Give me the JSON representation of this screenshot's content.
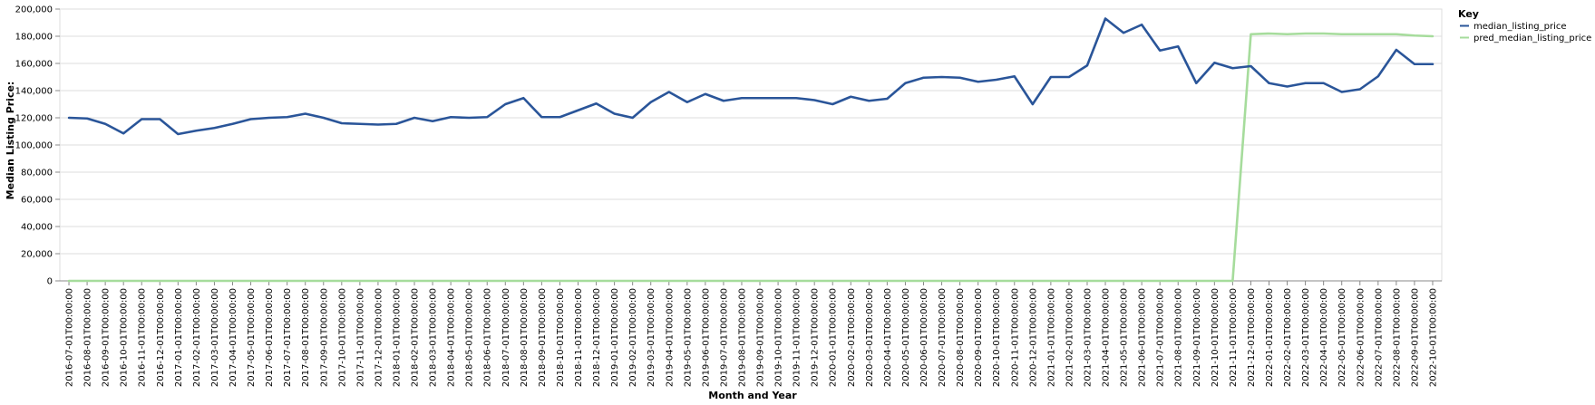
{
  "chart_data": {
    "type": "line",
    "xlabel": "Month and Year",
    "ylabel": "Median Listing Price:",
    "ylim": [
      0,
      200000
    ],
    "yticks": [
      "0",
      "20,000",
      "40,000",
      "60,000",
      "80,000",
      "100,000",
      "120,000",
      "140,000",
      "160,000",
      "180,000",
      "200,000"
    ],
    "grid": true,
    "legend": {
      "title": "Key",
      "placement": "right"
    },
    "x": [
      "2016-07-01T00:00:00",
      "2016-08-01T00:00:00",
      "2016-09-01T00:00:00",
      "2016-10-01T00:00:00",
      "2016-11-01T00:00:00",
      "2016-12-01T00:00:00",
      "2017-01-01T00:00:00",
      "2017-02-01T00:00:00",
      "2017-03-01T00:00:00",
      "2017-04-01T00:00:00",
      "2017-05-01T00:00:00",
      "2017-06-01T00:00:00",
      "2017-07-01T00:00:00",
      "2017-08-01T00:00:00",
      "2017-09-01T00:00:00",
      "2017-10-01T00:00:00",
      "2017-11-01T00:00:00",
      "2017-12-01T00:00:00",
      "2018-01-01T00:00:00",
      "2018-02-01T00:00:00",
      "2018-03-01T00:00:00",
      "2018-04-01T00:00:00",
      "2018-05-01T00:00:00",
      "2018-06-01T00:00:00",
      "2018-07-01T00:00:00",
      "2018-08-01T00:00:00",
      "2018-09-01T00:00:00",
      "2018-10-01T00:00:00",
      "2018-11-01T00:00:00",
      "2018-12-01T00:00:00",
      "2019-01-01T00:00:00",
      "2019-02-01T00:00:00",
      "2019-03-01T00:00:00",
      "2019-04-01T00:00:00",
      "2019-05-01T00:00:00",
      "2019-06-01T00:00:00",
      "2019-07-01T00:00:00",
      "2019-08-01T00:00:00",
      "2019-09-01T00:00:00",
      "2019-10-01T00:00:00",
      "2019-11-01T00:00:00",
      "2019-12-01T00:00:00",
      "2020-01-01T00:00:00",
      "2020-02-01T00:00:00",
      "2020-03-01T00:00:00",
      "2020-04-01T00:00:00",
      "2020-05-01T00:00:00",
      "2020-06-01T00:00:00",
      "2020-07-01T00:00:00",
      "2020-08-01T00:00:00",
      "2020-09-01T00:00:00",
      "2020-10-01T00:00:00",
      "2020-11-01T00:00:00",
      "2020-12-01T00:00:00",
      "2021-01-01T00:00:00",
      "2021-02-01T00:00:00",
      "2021-03-01T00:00:00",
      "2021-04-01T00:00:00",
      "2021-05-01T00:00:00",
      "2021-06-01T00:00:00",
      "2021-07-01T00:00:00",
      "2021-08-01T00:00:00",
      "2021-09-01T00:00:00",
      "2021-10-01T00:00:00",
      "2021-11-01T00:00:00",
      "2021-12-01T00:00:00",
      "2022-01-01T00:00:00",
      "2022-02-01T00:00:00",
      "2022-03-01T00:00:00",
      "2022-04-01T00:00:00",
      "2022-05-01T00:00:00",
      "2022-06-01T00:00:00",
      "2022-07-01T00:00:00",
      "2022-08-01T00:00:00",
      "2022-09-01T00:00:00",
      "2022-10-01T00:00:00"
    ],
    "series": [
      {
        "name": "median_listing_price",
        "color": "#2a5599",
        "values": [
          120000,
          119500,
          115500,
          108500,
          119000,
          119000,
          108000,
          110500,
          112500,
          115500,
          119000,
          120000,
          120500,
          123000,
          120000,
          116000,
          115500,
          115000,
          115500,
          120000,
          117500,
          120500,
          120000,
          120500,
          130000,
          134500,
          120500,
          120500,
          125500,
          130500,
          123000,
          120000,
          131500,
          139000,
          131500,
          137500,
          132500,
          134500,
          134500,
          134500,
          134500,
          133000,
          130000,
          135500,
          132500,
          134000,
          145500,
          149500,
          150000,
          149500,
          146500,
          148000,
          150500,
          130000,
          150000,
          150000,
          158500,
          193000,
          182500,
          188500,
          169500,
          172500,
          145500,
          160500,
          156500,
          158000,
          145500,
          143000,
          145500,
          145500,
          139000,
          141000,
          150500,
          170000,
          159500,
          159500
        ],
        "visible": true
      },
      {
        "name": "pred_median_listing_price",
        "color": "#a6dc9c",
        "values": [
          0,
          0,
          0,
          0,
          0,
          0,
          0,
          0,
          0,
          0,
          0,
          0,
          0,
          0,
          0,
          0,
          0,
          0,
          0,
          0,
          0,
          0,
          0,
          0,
          0,
          0,
          0,
          0,
          0,
          0,
          0,
          0,
          0,
          0,
          0,
          0,
          0,
          0,
          0,
          0,
          0,
          0,
          0,
          0,
          0,
          0,
          0,
          0,
          0,
          0,
          0,
          0,
          0,
          0,
          0,
          0,
          0,
          0,
          0,
          0,
          0,
          0,
          0,
          0,
          0,
          181500,
          182000,
          181500,
          182000,
          182000,
          181500,
          181500,
          181500,
          181500,
          180500,
          180000
        ],
        "visible": true
      }
    ]
  }
}
